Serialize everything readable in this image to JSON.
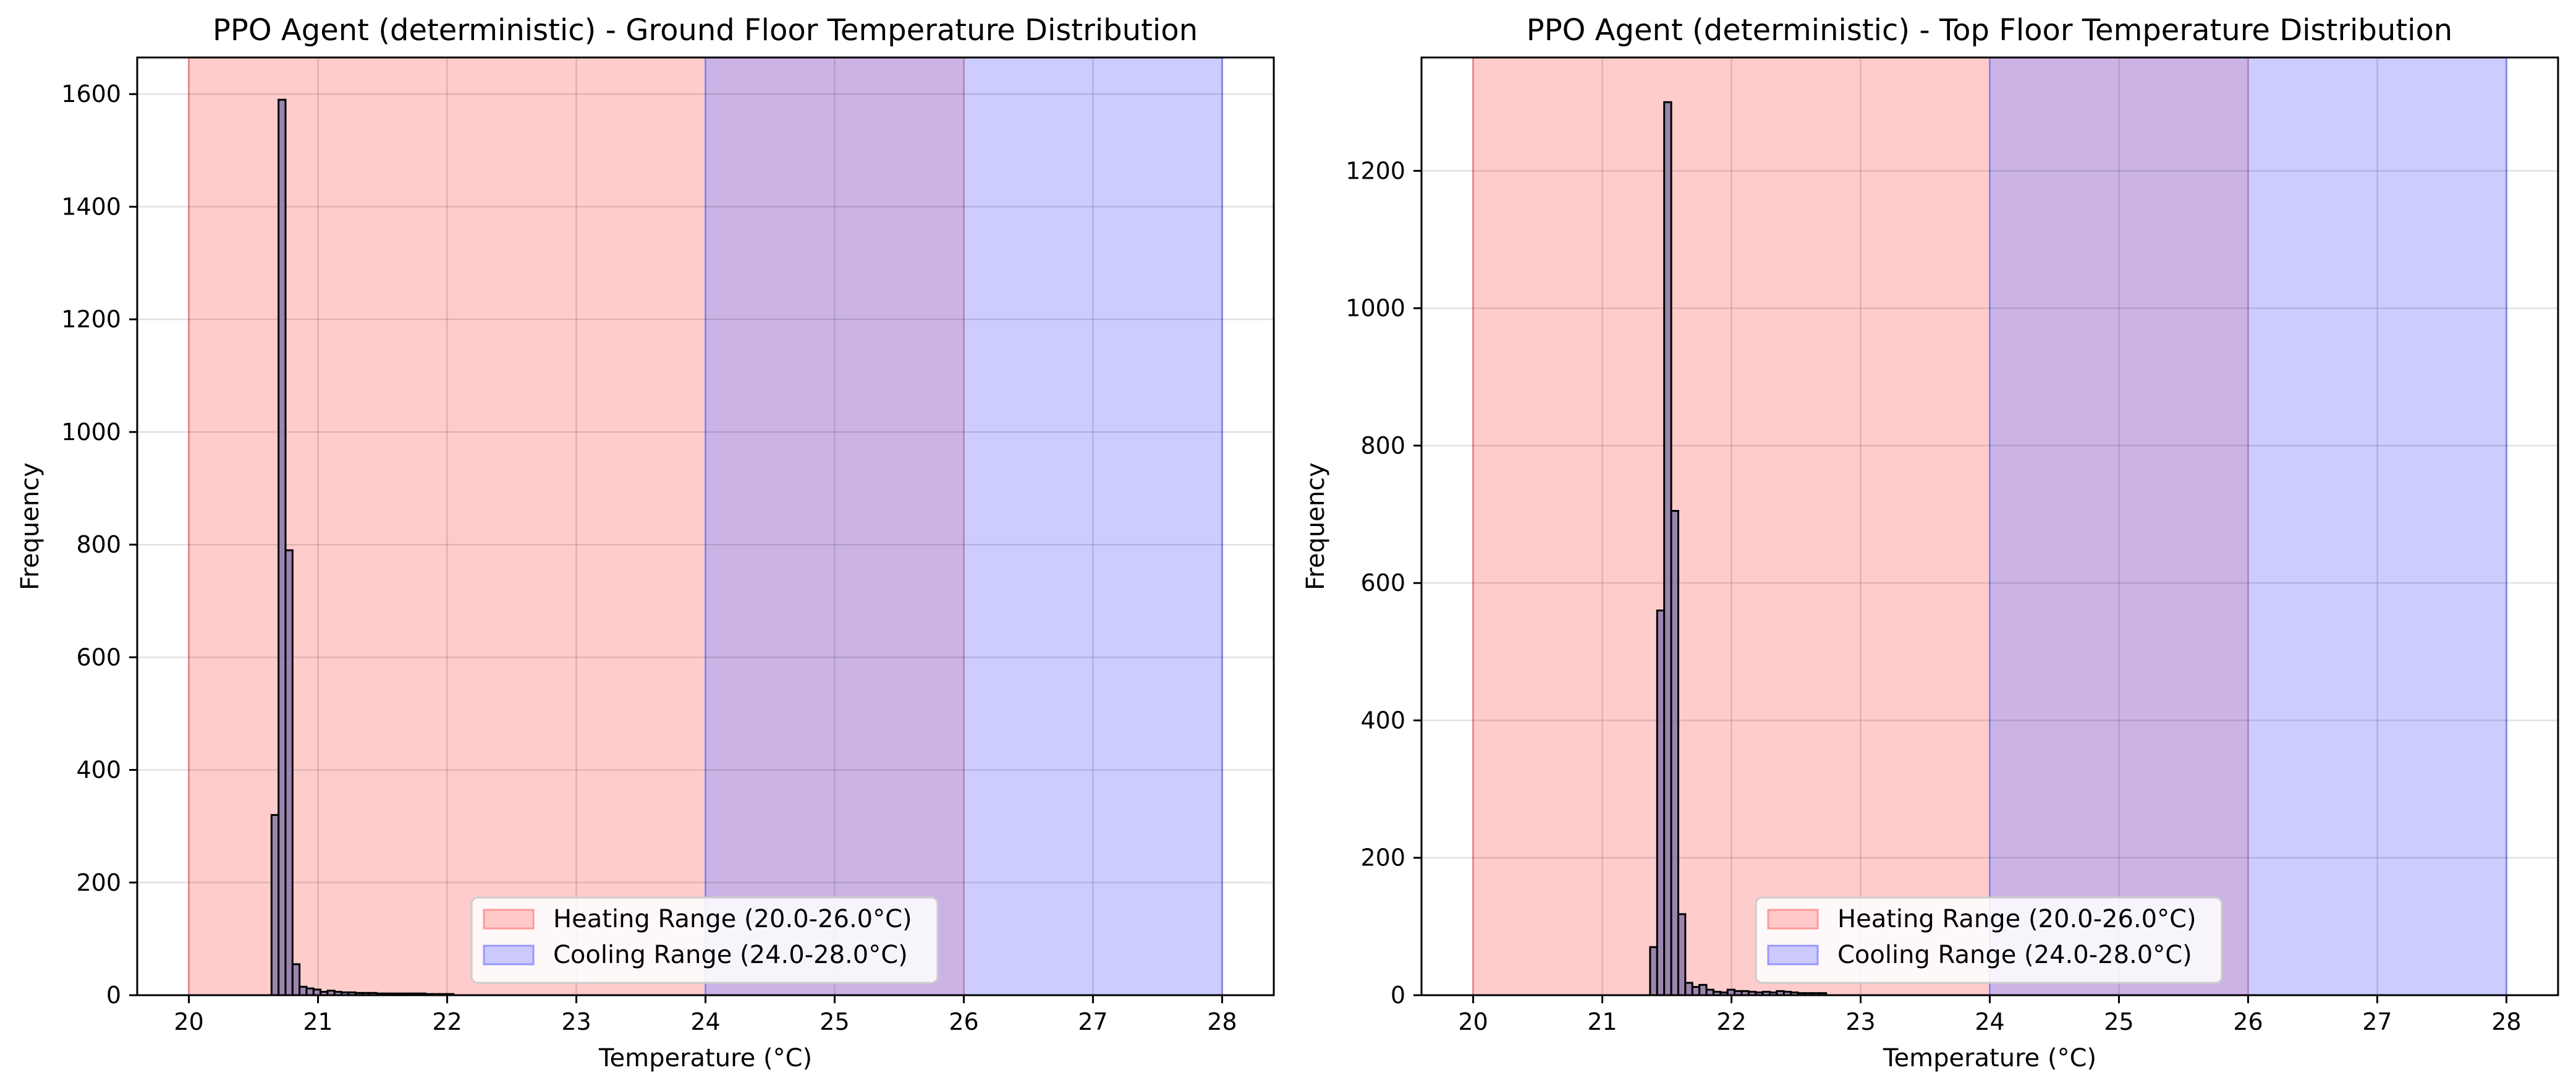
{
  "colors": {
    "heating": "#ff9999",
    "cooling": "#9999ff",
    "bar_fill": "#8878a8",
    "bar_edge": "#000000",
    "grid": "#d9d9d9"
  },
  "chart_data": [
    {
      "type": "bar",
      "title": "PPO Agent (deterministic) - Ground Floor Temperature Distribution",
      "xlabel": "Temperature (°C)",
      "ylabel": "Frequency",
      "xlim": [
        19.6,
        28.4
      ],
      "ylim": [
        0,
        1665
      ],
      "xticks": [
        20,
        21,
        22,
        23,
        24,
        25,
        26,
        27,
        28
      ],
      "yticks": [
        0,
        200,
        400,
        600,
        800,
        1000,
        1200,
        1400,
        1600
      ],
      "grid": true,
      "legend_position": "lower center",
      "ranges": [
        {
          "name": "Heating Range (20.0-26.0°C)",
          "from": 20.0,
          "to": 26.0,
          "color": "heating"
        },
        {
          "name": "Cooling Range (24.0-28.0°C)",
          "from": 24.0,
          "to": 28.0,
          "color": "cooling"
        }
      ],
      "bin_start": 20.64,
      "bin_width": 0.0542,
      "values": [
        320,
        1590,
        790,
        55,
        15,
        12,
        10,
        6,
        8,
        6,
        5,
        5,
        4,
        4,
        4,
        3,
        3,
        3,
        3,
        3,
        3,
        3,
        2,
        2,
        2,
        2
      ]
    },
    {
      "type": "bar",
      "title": "PPO Agent (deterministic) - Top Floor Temperature Distribution",
      "xlabel": "Temperature (°C)",
      "ylabel": "Frequency",
      "xlim": [
        19.6,
        28.4
      ],
      "ylim": [
        0,
        1365
      ],
      "xticks": [
        20,
        21,
        22,
        23,
        24,
        25,
        26,
        27,
        28
      ],
      "yticks": [
        0,
        200,
        400,
        600,
        800,
        1000,
        1200
      ],
      "grid": true,
      "legend_position": "lower center",
      "ranges": [
        {
          "name": "Heating Range (20.0-26.0°C)",
          "from": 20.0,
          "to": 26.0,
          "color": "heating"
        },
        {
          "name": "Cooling Range (24.0-28.0°C)",
          "from": 24.0,
          "to": 28.0,
          "color": "cooling"
        }
      ],
      "bin_start": 21.37,
      "bin_width": 0.0545,
      "values": [
        70,
        560,
        1300,
        705,
        118,
        18,
        12,
        15,
        8,
        5,
        4,
        8,
        6,
        6,
        5,
        4,
        5,
        4,
        6,
        5,
        4,
        3,
        3,
        3,
        3
      ]
    }
  ]
}
